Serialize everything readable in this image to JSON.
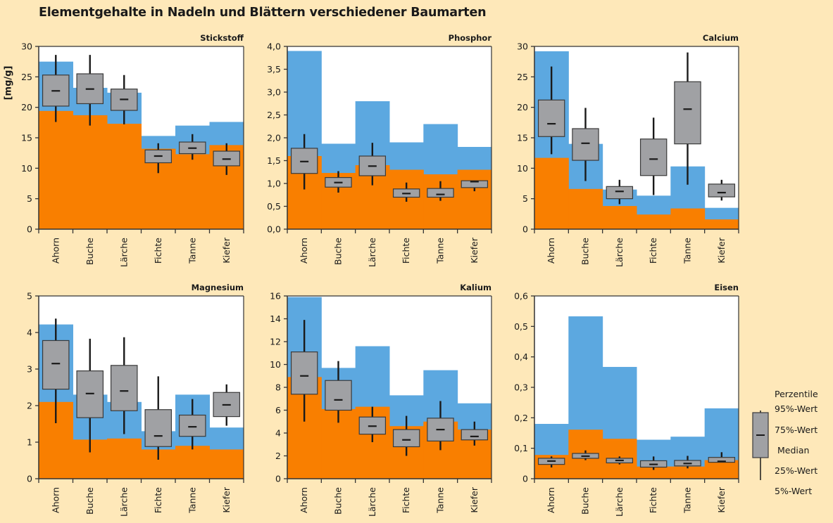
{
  "title": "Elementgehalte in Nadeln und Blättern verschiedener Baumarten",
  "y_unit_label": "[mg/g]",
  "colors": {
    "background": "#fee8b9",
    "blue_range": "#5ca8e0",
    "orange_range": "#f97f00",
    "box_fill": "#a0a1a4",
    "plot_bg": "#ffffff",
    "stroke": "#1a1a1a"
  },
  "legend": {
    "title": "Perzentile",
    "items": [
      "95%-Wert",
      "75%-Wert",
      "Median",
      "25%-Wert",
      "5%-Wert"
    ]
  },
  "chart_data": [
    {
      "type": "boxplot_with_range_steps",
      "title": "Stickstoff",
      "ylabel": "[mg/g]",
      "ylim": [
        0,
        30
      ],
      "yticks": [
        0,
        5,
        10,
        15,
        20,
        25,
        30
      ],
      "ytick_labels": [
        "0",
        "5",
        "10",
        "15",
        "20",
        "25",
        "30"
      ],
      "categories": [
        "Ahorn",
        "Buche",
        "Lärche",
        "Fichte",
        "Tanne",
        "Kiefer"
      ],
      "blue_upper": [
        27.5,
        23.2,
        22.4,
        15.3,
        17.0,
        17.6
      ],
      "orange_upper": [
        19.4,
        18.7,
        17.3,
        13.2,
        12.3,
        13.8
      ],
      "boxes": [
        {
          "p5": 17.6,
          "p25": 20.2,
          "median": 22.7,
          "p75": 25.3,
          "p95": 28.6
        },
        {
          "p5": 17.0,
          "p25": 20.6,
          "median": 23.0,
          "p75": 25.5,
          "p95": 28.6
        },
        {
          "p5": 17.2,
          "p25": 19.5,
          "median": 21.3,
          "p75": 23.0,
          "p95": 25.3
        },
        {
          "p5": 9.2,
          "p25": 10.9,
          "median": 12.0,
          "p75": 13.0,
          "p95": 14.1
        },
        {
          "p5": 11.4,
          "p25": 12.4,
          "median": 13.3,
          "p75": 14.3,
          "p95": 15.6
        },
        {
          "p5": 8.9,
          "p25": 10.4,
          "median": 11.5,
          "p75": 12.8,
          "p95": 14.1
        }
      ]
    },
    {
      "type": "boxplot_with_range_steps",
      "title": "Phosphor",
      "ylim": [
        0,
        4
      ],
      "yticks": [
        0,
        0.5,
        1,
        1.5,
        2,
        2.5,
        3,
        3.5,
        4
      ],
      "ytick_labels": [
        "0,0",
        "0,5",
        "1,0",
        "1,5",
        "2,0",
        "2,5",
        "3,0",
        "3,5",
        "4,0"
      ],
      "categories": [
        "Ahorn",
        "Buche",
        "Lärche",
        "Fichte",
        "Tanne",
        "Kiefer"
      ],
      "blue_upper": [
        3.9,
        1.87,
        2.8,
        1.9,
        2.3,
        1.8
      ],
      "orange_upper": [
        1.6,
        1.23,
        1.4,
        1.3,
        1.2,
        1.3
      ],
      "boxes": [
        {
          "p5": 0.87,
          "p25": 1.22,
          "median": 1.48,
          "p75": 1.77,
          "p95": 2.08
        },
        {
          "p5": 0.8,
          "p25": 0.92,
          "median": 1.02,
          "p75": 1.13,
          "p95": 1.27
        },
        {
          "p5": 0.96,
          "p25": 1.17,
          "median": 1.38,
          "p75": 1.6,
          "p95": 1.89
        },
        {
          "p5": 0.6,
          "p25": 0.7,
          "median": 0.78,
          "p75": 0.88,
          "p95": 1.02
        },
        {
          "p5": 0.62,
          "p25": 0.7,
          "median": 0.76,
          "p75": 0.89,
          "p95": 1.05
        },
        {
          "p5": 0.83,
          "p25": 0.91,
          "median": 1.04,
          "p75": 1.06,
          "p95": 1.06
        }
      ]
    },
    {
      "type": "boxplot_with_range_steps",
      "title": "Calcium",
      "ylim": [
        0,
        30
      ],
      "yticks": [
        0,
        5,
        10,
        15,
        20,
        25,
        30
      ],
      "ytick_labels": [
        "0",
        "5",
        "10",
        "15",
        "20",
        "25",
        "30"
      ],
      "categories": [
        "Ahorn",
        "Buche",
        "Lärche",
        "Fichte",
        "Tanne",
        "Kiefer"
      ],
      "blue_upper": [
        29.2,
        14.0,
        6.5,
        5.5,
        10.3,
        3.5
      ],
      "orange_upper": [
        11.7,
        6.6,
        3.8,
        2.4,
        3.4,
        1.6
      ],
      "boxes": [
        {
          "p5": 12.3,
          "p25": 15.2,
          "median": 17.3,
          "p75": 21.2,
          "p95": 26.7
        },
        {
          "p5": 7.9,
          "p25": 11.3,
          "median": 14.1,
          "p75": 16.5,
          "p95": 19.9
        },
        {
          "p5": 4.1,
          "p25": 5.0,
          "median": 6.2,
          "p75": 7.0,
          "p95": 8.1
        },
        {
          "p5": 5.6,
          "p25": 8.8,
          "median": 11.5,
          "p75": 14.8,
          "p95": 18.3
        },
        {
          "p5": 7.3,
          "p25": 14.0,
          "median": 19.7,
          "p75": 24.2,
          "p95": 29.0
        },
        {
          "p5": 4.7,
          "p25": 5.3,
          "median": 6.0,
          "p75": 7.4,
          "p95": 8.1
        }
      ]
    },
    {
      "type": "boxplot_with_range_steps",
      "title": "Magnesium",
      "ylim": [
        0,
        5
      ],
      "yticks": [
        0,
        1,
        2,
        3,
        4,
        5
      ],
      "ytick_labels": [
        "0",
        "1",
        "2",
        "3",
        "4",
        "5"
      ],
      "categories": [
        "Ahorn",
        "Buche",
        "Lärche",
        "Fichte",
        "Tanne",
        "Kiefer"
      ],
      "blue_upper": [
        4.22,
        2.3,
        2.1,
        1.3,
        2.3,
        1.4
      ],
      "orange_upper": [
        2.1,
        1.07,
        1.1,
        0.8,
        0.9,
        0.8
      ],
      "boxes": [
        {
          "p5": 1.52,
          "p25": 2.45,
          "median": 3.15,
          "p75": 3.78,
          "p95": 4.38
        },
        {
          "p5": 0.72,
          "p25": 1.67,
          "median": 2.33,
          "p75": 2.95,
          "p95": 3.83
        },
        {
          "p5": 1.22,
          "p25": 1.86,
          "median": 2.4,
          "p75": 3.1,
          "p95": 3.87
        },
        {
          "p5": 0.52,
          "p25": 0.88,
          "median": 1.17,
          "p75": 1.89,
          "p95": 2.8
        },
        {
          "p5": 0.8,
          "p25": 1.16,
          "median": 1.42,
          "p75": 1.74,
          "p95": 2.18
        },
        {
          "p5": 1.45,
          "p25": 1.7,
          "median": 2.02,
          "p75": 2.36,
          "p95": 2.58
        }
      ]
    },
    {
      "type": "boxplot_with_range_steps",
      "title": "Kalium",
      "ylim": [
        0,
        16
      ],
      "yticks": [
        0,
        2,
        4,
        6,
        8,
        10,
        12,
        14,
        16
      ],
      "ytick_labels": [
        "0",
        "2",
        "4",
        "6",
        "8",
        "10",
        "12",
        "14",
        "16"
      ],
      "categories": [
        "Ahorn",
        "Buche",
        "Lärche",
        "Fichte",
        "Tanne",
        "Kiefer"
      ],
      "blue_upper": [
        15.9,
        9.7,
        11.6,
        7.3,
        9.5,
        6.6
      ],
      "orange_upper": [
        8.9,
        6.1,
        6.3,
        4.6,
        5.0,
        4.3
      ],
      "boxes": [
        {
          "p5": 5.0,
          "p25": 7.4,
          "median": 9.0,
          "p75": 11.1,
          "p95": 13.9
        },
        {
          "p5": 4.9,
          "p25": 6.0,
          "median": 6.9,
          "p75": 8.6,
          "p95": 10.3
        },
        {
          "p5": 3.2,
          "p25": 3.9,
          "median": 4.6,
          "p75": 5.4,
          "p95": 6.3
        },
        {
          "p5": 2.0,
          "p25": 2.8,
          "median": 3.4,
          "p75": 4.3,
          "p95": 5.5
        },
        {
          "p5": 2.5,
          "p25": 3.3,
          "median": 4.3,
          "p75": 5.3,
          "p95": 6.8
        },
        {
          "p5": 2.9,
          "p25": 3.4,
          "median": 3.7,
          "p75": 4.3,
          "p95": 5.0
        }
      ]
    },
    {
      "type": "boxplot_with_range_steps",
      "title": "Eisen",
      "ylim": [
        0,
        0.6
      ],
      "yticks": [
        0,
        0.1,
        0.2,
        0.3,
        0.4,
        0.5,
        0.6
      ],
      "ytick_labels": [
        "0",
        "0,1",
        "0,2",
        "0,3",
        "0,4",
        "0,5",
        "0,6"
      ],
      "categories": [
        "Ahorn",
        "Buche",
        "Lärche",
        "Fichte",
        "Tanne",
        "Kiefer"
      ],
      "blue_upper": [
        0.18,
        0.533,
        0.367,
        0.128,
        0.138,
        0.231
      ],
      "orange_upper": [
        0.078,
        0.161,
        0.131,
        0.04,
        0.04,
        0.061
      ],
      "boxes": [
        {
          "p5": 0.037,
          "p25": 0.047,
          "median": 0.058,
          "p75": 0.067,
          "p95": 0.073
        },
        {
          "p5": 0.061,
          "p25": 0.067,
          "median": 0.074,
          "p75": 0.083,
          "p95": 0.093
        },
        {
          "p5": 0.047,
          "p25": 0.052,
          "median": 0.06,
          "p75": 0.067,
          "p95": 0.073
        },
        {
          "p5": 0.029,
          "p25": 0.038,
          "median": 0.047,
          "p75": 0.059,
          "p95": 0.073
        },
        {
          "p5": 0.034,
          "p25": 0.042,
          "median": 0.05,
          "p75": 0.06,
          "p95": 0.075
        },
        {
          "p5": 0.055,
          "p25": 0.054,
          "median": 0.057,
          "p75": 0.07,
          "p95": 0.087
        }
      ]
    }
  ]
}
